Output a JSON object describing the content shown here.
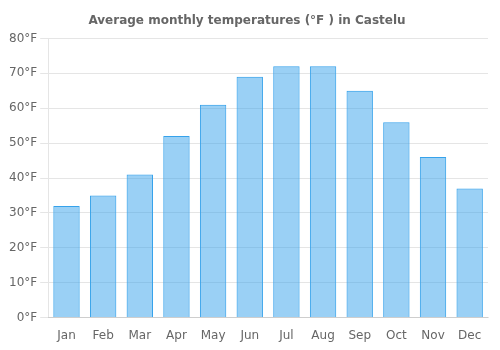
{
  "chart_data": {
    "type": "bar",
    "title": "Average monthly temperatures (°F ) in Castelu",
    "categories": [
      "Jan",
      "Feb",
      "Mar",
      "Apr",
      "May",
      "Jun",
      "Jul",
      "Aug",
      "Sep",
      "Oct",
      "Nov",
      "Dec"
    ],
    "values": [
      32,
      35,
      41,
      52,
      61,
      69,
      72,
      72,
      65,
      56,
      46,
      37
    ],
    "ylim": [
      0,
      80
    ],
    "yticks": [
      {
        "value": 0,
        "label": "0°F"
      },
      {
        "value": 10,
        "label": "10°F"
      },
      {
        "value": 20,
        "label": "20°F"
      },
      {
        "value": 30,
        "label": "30°F"
      },
      {
        "value": 40,
        "label": "40°F"
      },
      {
        "value": 50,
        "label": "50°F"
      },
      {
        "value": 60,
        "label": "60°F"
      },
      {
        "value": 70,
        "label": "70°F"
      },
      {
        "value": 80,
        "label": "80°F"
      }
    ],
    "grid": true
  }
}
